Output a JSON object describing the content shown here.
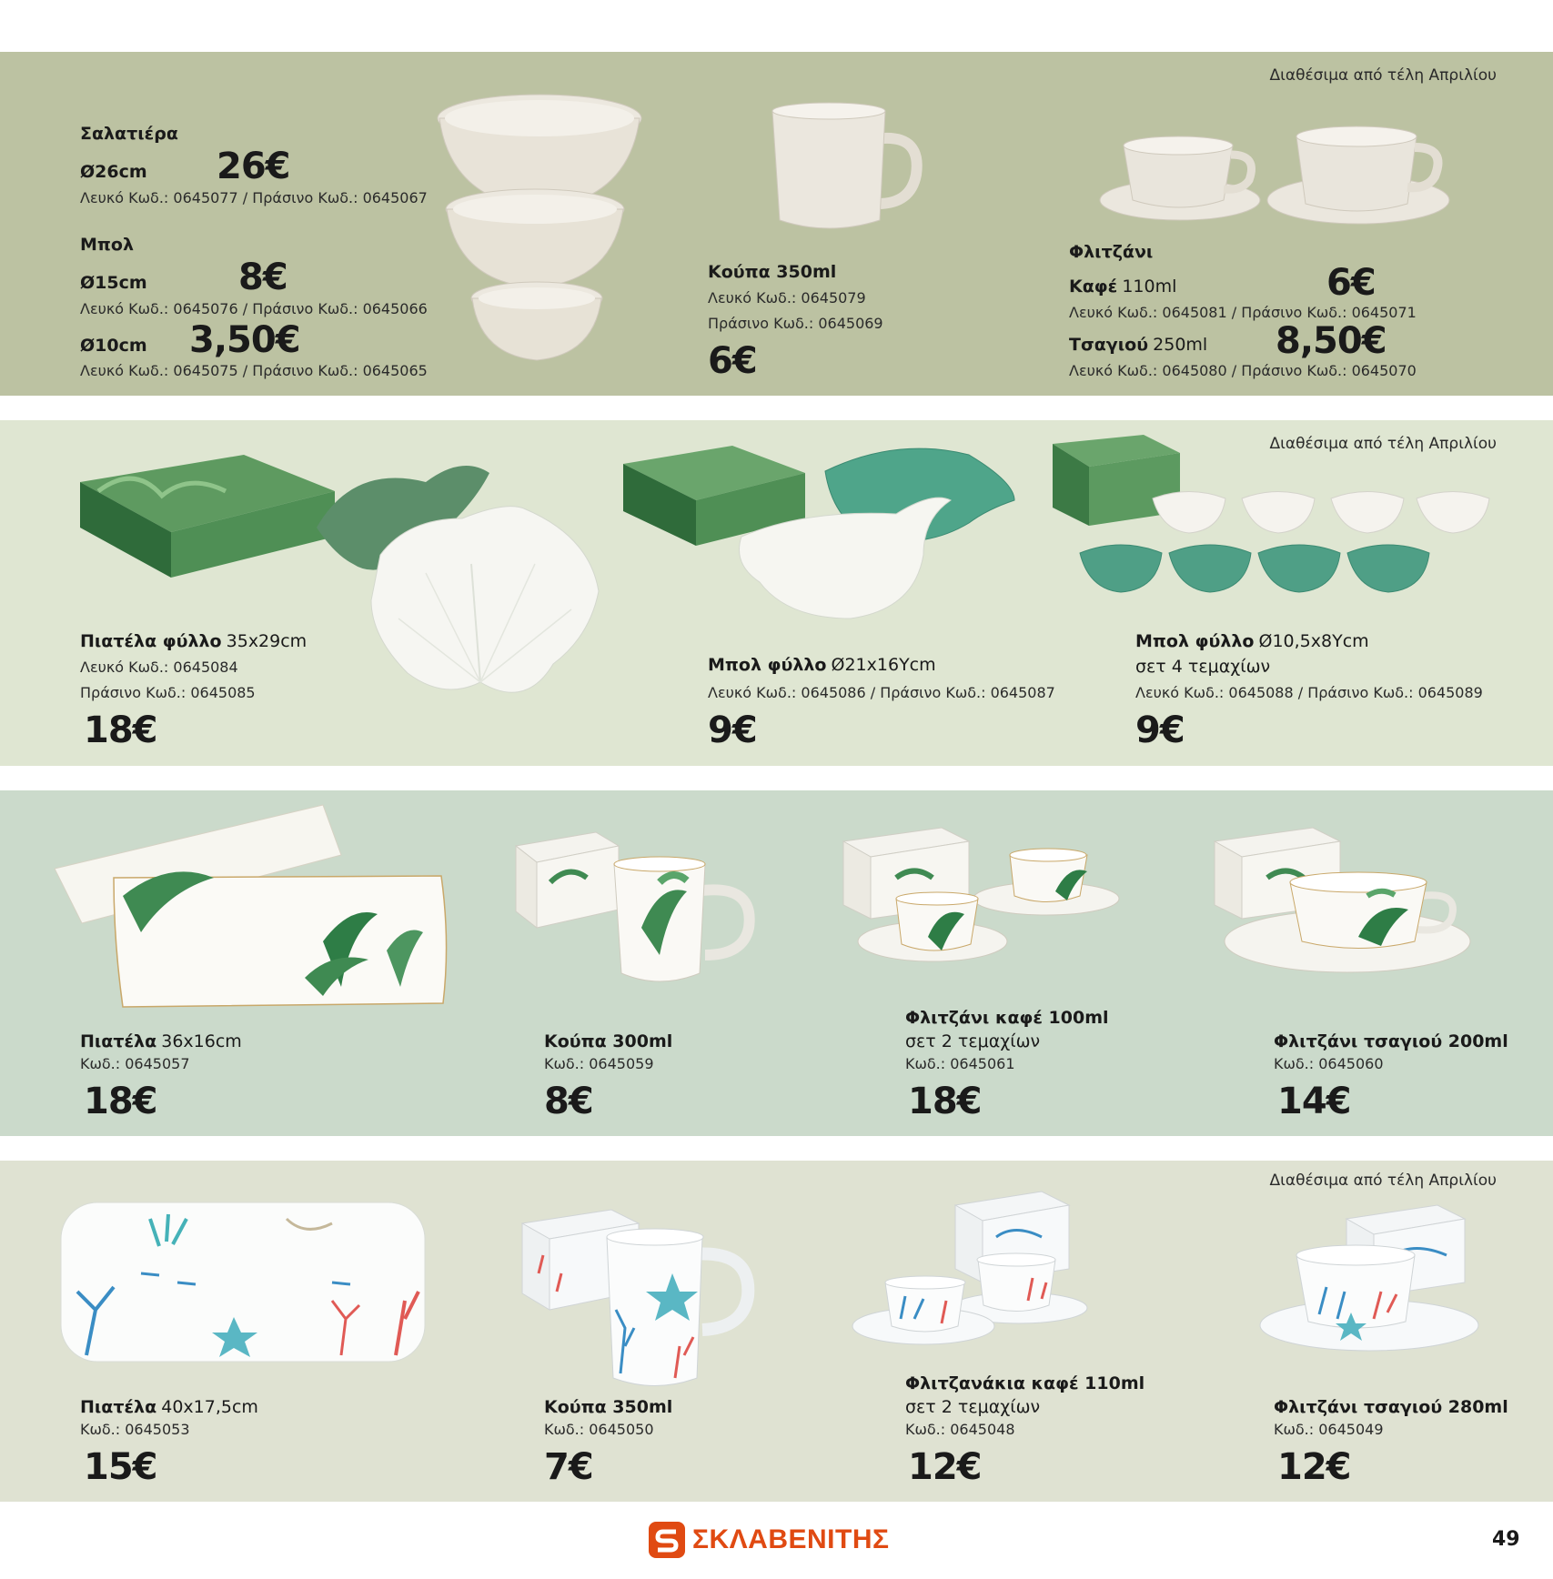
{
  "availability_note": "Διαθέσιμα από τέλη Απριλίου",
  "section1": {
    "salad_bowl": {
      "title": "Σαλατιέρα",
      "size": "Ø26cm",
      "price": "26€",
      "codes": "Λευκό Κωδ.: 0645077 / Πράσινο Κωδ.: 0645067"
    },
    "bowl": {
      "title": "Μπολ",
      "size1": "Ø15cm",
      "price1": "8€",
      "codes1": "Λευκό Κωδ.: 0645076 / Πράσινο Κωδ.: 0645066",
      "size2": "Ø10cm",
      "price2": "3,50€",
      "codes2": "Λευκό Κωδ.: 0645075 / Πράσινο Κωδ.: 0645065"
    },
    "mug": {
      "title": "Κούπα 350ml",
      "code_white": "Λευκό Κωδ.: 0645079",
      "code_green": "Πράσινο Κωδ.: 0645069",
      "price": "6€"
    },
    "cup": {
      "title": "Φλιτζάνι",
      "coffee_label": "Καφέ",
      "coffee_size": "110ml",
      "coffee_price": "6€",
      "coffee_codes": "Λευκό Κωδ.: 0645081 / Πράσινο Κωδ.: 0645071",
      "tea_label": "Τσαγιού",
      "tea_size": "250ml",
      "tea_price": "8,50€",
      "tea_codes": "Λευκό Κωδ.: 0645080 / Πράσινο Κωδ.: 0645070"
    }
  },
  "section2": {
    "leaf_platter": {
      "title": "Πιατέλα φύλλο",
      "size": "35x29cm",
      "code_white": "Λευκό Κωδ.: 0645084",
      "code_green": "Πράσινο Κωδ.: 0645085",
      "price": "18€"
    },
    "leaf_bowl": {
      "title": "Μπολ φύλλο",
      "size": "Ø21x16Ycm",
      "codes": "Λευκό Κωδ.: 0645086 / Πράσινο Κωδ.: 0645087",
      "price": "9€"
    },
    "leaf_bowl_set": {
      "title": "Μπολ φύλλο",
      "size": "Ø10,5x8Ycm",
      "subtitle": "σετ 4 τεμαχίων",
      "codes": "Λευκό Κωδ.: 0645088 / Πράσινο Κωδ.: 0645089",
      "price": "9€"
    }
  },
  "section3": {
    "platter": {
      "title": "Πιατέλα",
      "size": "36x16cm",
      "code": "Κωδ.: 0645057",
      "price": "18€"
    },
    "mug": {
      "title": "Κούπα 300ml",
      "code": "Κωδ.: 0645059",
      "price": "8€"
    },
    "coffee_cups": {
      "title": "Φλιτζάνι καφέ 100ml",
      "subtitle": "σετ 2 τεμαχίων",
      "code": "Κωδ.: 0645061",
      "price": "18€"
    },
    "tea_cup": {
      "title": "Φλιτζάνι τσαγιού 200ml",
      "code": "Κωδ.: 0645060",
      "price": "14€"
    }
  },
  "section4": {
    "platter": {
      "title": "Πιατέλα",
      "size": "40x17,5cm",
      "code": "Κωδ.: 0645053",
      "price": "15€"
    },
    "mug": {
      "title": "Κούπα 350ml",
      "code": "Κωδ.: 0645050",
      "price": "7€"
    },
    "coffee_cups": {
      "title": "Φλιτζανάκια καφέ 110ml",
      "subtitle": "σετ 2 τεμαχίων",
      "code": "Κωδ.: 0645048",
      "price": "12€"
    },
    "tea_cup": {
      "title": "Φλιτζάνι τσαγιού 280ml",
      "code": "Κωδ.: 0645049",
      "price": "12€"
    }
  },
  "footer": {
    "brand": "ΣΚΛΑΒΕΝΙΤΗΣ",
    "page_number": "49"
  },
  "colors": {
    "band1": "#bcc2a2",
    "band2": "#dfe6d2",
    "band3": "#cbdacb",
    "band4": "#dfe2d2",
    "brand": "#e04a12"
  }
}
